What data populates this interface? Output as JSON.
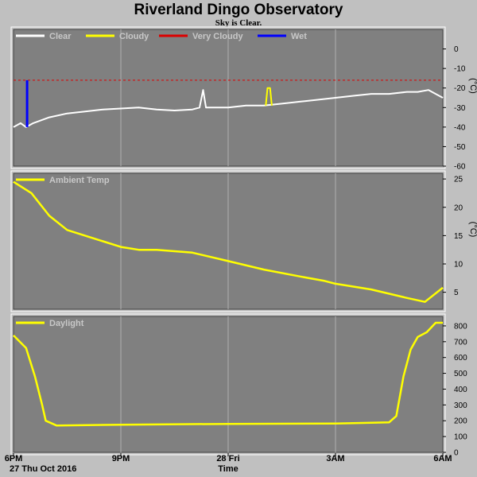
{
  "chart_data": {
    "title": "Riverland Dingo Observatory",
    "subtitle": "Sky is Clear.",
    "xlabel": "Time",
    "x_ticks": [
      {
        "hour": 0,
        "label": "6PM"
      },
      {
        "hour": 3,
        "label": "9PM"
      },
      {
        "hour": 6,
        "label": "28 Fri"
      },
      {
        "hour": 9,
        "label": "3AM"
      },
      {
        "hour": 12,
        "label": "6AM"
      }
    ],
    "x_sublabel": "27 Thu Oct 2016",
    "colors": {
      "background": "#c0c0c0",
      "plot": "#808080",
      "clear": "#ffffff",
      "cloudy": "#ffff00",
      "very_cloudy": "#dd0000",
      "wet": "#0000ff",
      "trace": "#ffff00"
    },
    "panels": [
      {
        "type": "line",
        "name": "sky",
        "unit": "(°C)",
        "ylim": [
          -60,
          10
        ],
        "yticks": [
          0,
          -10,
          -20,
          -30,
          -40,
          -50,
          -60
        ],
        "legend": [
          "Clear",
          "Cloudy",
          "Very Cloudy",
          "Wet"
        ],
        "very_cloudy_threshold": -16,
        "series": [
          {
            "name": "Clear",
            "points": [
              [
                0,
                -40
              ],
              [
                0.2,
                -38
              ],
              [
                0.35,
                -40
              ],
              [
                0.55,
                -38
              ],
              [
                1,
                -35
              ],
              [
                1.5,
                -33
              ],
              [
                2,
                -32
              ],
              [
                2.5,
                -31
              ],
              [
                3,
                -30.5
              ],
              [
                3.5,
                -30
              ],
              [
                4,
                -31
              ],
              [
                4.5,
                -31.5
              ],
              [
                5,
                -31
              ],
              [
                5.2,
                -30
              ],
              [
                5.3,
                -21
              ],
              [
                5.38,
                -30
              ],
              [
                6,
                -30
              ],
              [
                6.5,
                -29
              ],
              [
                7,
                -29
              ],
              [
                7.5,
                -28
              ],
              [
                8,
                -27
              ],
              [
                8.5,
                -26
              ],
              [
                9,
                -25
              ],
              [
                9.5,
                -24
              ],
              [
                10,
                -23
              ],
              [
                10.5,
                -23
              ],
              [
                11,
                -22
              ],
              [
                11.3,
                -22
              ],
              [
                11.6,
                -21
              ],
              [
                11.8,
                -23
              ],
              [
                12,
                -25
              ]
            ]
          },
          {
            "name": "Cloudy",
            "points": [
              [
                7.05,
                -29
              ],
              [
                7.1,
                -20
              ],
              [
                7.17,
                -20
              ],
              [
                7.22,
                -29
              ]
            ]
          },
          {
            "name": "Wet",
            "points": [
              [
                0.38,
                -40
              ],
              [
                0.38,
                -16
              ]
            ]
          }
        ]
      },
      {
        "type": "line",
        "name": "ambient",
        "unit": "(°C)",
        "ylim": [
          2,
          26
        ],
        "yticks": [
          25,
          20,
          15,
          10,
          5
        ],
        "legend": [
          "Ambient Temp"
        ],
        "series": [
          {
            "name": "Ambient Temp",
            "points": [
              [
                0,
                24.5
              ],
              [
                0.5,
                22.5
              ],
              [
                1,
                18.5
              ],
              [
                1.5,
                16
              ],
              [
                2,
                15
              ],
              [
                2.5,
                14
              ],
              [
                3,
                13
              ],
              [
                3.5,
                12.5
              ],
              [
                4,
                12.5
              ],
              [
                5,
                12
              ],
              [
                6,
                10.5
              ],
              [
                7,
                9
              ],
              [
                8,
                7.8
              ],
              [
                8.7,
                7
              ],
              [
                9,
                6.5
              ],
              [
                9.5,
                6
              ],
              [
                10,
                5.5
              ],
              [
                11,
                4
              ],
              [
                11.5,
                3.3
              ],
              [
                12,
                5.8
              ]
            ]
          }
        ]
      },
      {
        "type": "line",
        "name": "daylight",
        "unit": "",
        "ylim": [
          0,
          860
        ],
        "yticks": [
          800,
          700,
          600,
          500,
          400,
          300,
          200,
          100,
          0
        ],
        "legend": [
          "Daylight"
        ],
        "series": [
          {
            "name": "Daylight",
            "points": [
              [
                0,
                740
              ],
              [
                0.35,
                660
              ],
              [
                0.6,
                480
              ],
              [
                0.8,
                300
              ],
              [
                0.9,
                200
              ],
              [
                1.2,
                170
              ],
              [
                3,
                175
              ],
              [
                6,
                180
              ],
              [
                9,
                182
              ],
              [
                10.5,
                190
              ],
              [
                10.7,
                230
              ],
              [
                10.9,
                480
              ],
              [
                11.1,
                650
              ],
              [
                11.3,
                730
              ],
              [
                11.55,
                760
              ],
              [
                11.8,
                820
              ],
              [
                12,
                820
              ]
            ]
          }
        ]
      }
    ]
  }
}
